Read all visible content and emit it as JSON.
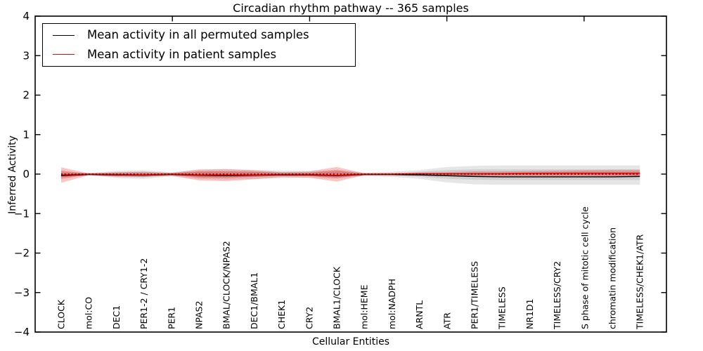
{
  "title": "Circadian rhythm pathway -- 365 samples",
  "legend": {
    "items": [
      {
        "label": "Mean activity in all permuted samples",
        "color": "#000000"
      },
      {
        "label": "Mean activity in patient samples",
        "color": "#ff0000"
      }
    ],
    "position": "upper left"
  },
  "axes": {
    "spine_color": "#000000",
    "background": "#ffffff"
  },
  "chart_data": {
    "type": "line",
    "title": "Circadian rhythm pathway -- 365 samples",
    "xlabel": "Cellular Entities",
    "ylabel": "Inferred Activity",
    "ylim": [
      -4,
      4
    ],
    "grid": false,
    "legend_position": "upper left",
    "yticks": [
      4,
      3,
      2,
      1,
      0,
      -1,
      -2,
      -3,
      -4
    ],
    "yticklabels": [
      "4",
      "3",
      "2",
      "1",
      "0",
      "−1",
      "−2",
      "−3",
      "−4"
    ],
    "xticks_top": [
      5,
      10,
      15,
      20
    ],
    "categories": [
      "CLOCK",
      "mol:CO",
      "DEC1",
      "PER1-2 / CRY1-2",
      "PER1",
      "NPAS2",
      "BMAL/CLOCK/NPAS2",
      "DEC1/BMAL1",
      "CHEK1",
      "CRY2",
      "BMAL1/CLOCK",
      "mol:HEME",
      "mol:NADPH",
      "ARNTL",
      "ATR",
      "PER1/TIMELESS",
      "TIMELESS",
      "NR1D1",
      "TIMELESS/CRY2",
      "S phase of mitotic cell cycle",
      "chromatin modification",
      "TIMELESS/CHEK1/ATR"
    ],
    "series": [
      {
        "name": "Mean activity in all permuted samples",
        "color": "#000000",
        "style": "solid",
        "width": 1.4,
        "values": [
          -0.04,
          -0.01,
          -0.02,
          -0.03,
          -0.01,
          -0.03,
          -0.04,
          -0.03,
          -0.02,
          -0.02,
          -0.04,
          -0.01,
          -0.01,
          -0.02,
          -0.04,
          -0.06,
          -0.07,
          -0.07,
          -0.07,
          -0.07,
          -0.07,
          -0.06
        ]
      },
      {
        "name": "Mean activity in patient samples",
        "color": "#ff0000",
        "style": "solid",
        "width": 1.5,
        "values": [
          -0.02,
          0.0,
          -0.01,
          -0.02,
          0.0,
          -0.02,
          -0.02,
          -0.02,
          -0.01,
          -0.01,
          -0.03,
          0.0,
          0.0,
          0.01,
          0.01,
          0.01,
          0.01,
          0.02,
          0.02,
          0.02,
          0.02,
          0.02
        ]
      },
      {
        "name": "zero-reference",
        "color": "#000000",
        "style": "dotted",
        "width": 1.2,
        "values": [
          0,
          0,
          0,
          0,
          0,
          0,
          0,
          0,
          0,
          0,
          0,
          0,
          0,
          0,
          0,
          0,
          0,
          0,
          0,
          0,
          0,
          0
        ]
      }
    ],
    "bands": [
      {
        "name": "permuted-range-outer",
        "color": "rgba(130,130,130,0.20)",
        "upper": [
          0.06,
          0.03,
          0.08,
          0.1,
          0.05,
          0.1,
          0.12,
          0.1,
          0.09,
          0.08,
          0.1,
          0.04,
          0.06,
          0.1,
          0.18,
          0.21,
          0.22,
          0.22,
          0.22,
          0.22,
          0.22,
          0.22
        ],
        "lower": [
          -0.08,
          -0.03,
          -0.1,
          -0.12,
          -0.06,
          -0.12,
          -0.14,
          -0.12,
          -0.1,
          -0.09,
          -0.12,
          -0.05,
          -0.07,
          -0.12,
          -0.21,
          -0.26,
          -0.27,
          -0.27,
          -0.27,
          -0.27,
          -0.27,
          -0.27
        ]
      },
      {
        "name": "permuted-range-inner",
        "color": "rgba(130,130,130,0.22)",
        "upper": [
          0.03,
          0.02,
          0.04,
          0.06,
          0.03,
          0.06,
          0.07,
          0.06,
          0.05,
          0.04,
          0.06,
          0.02,
          0.03,
          0.06,
          0.1,
          0.12,
          0.12,
          0.12,
          0.12,
          0.12,
          0.12,
          0.12
        ],
        "lower": [
          -0.04,
          -0.02,
          -0.06,
          -0.07,
          -0.03,
          -0.07,
          -0.08,
          -0.07,
          -0.06,
          -0.05,
          -0.07,
          -0.03,
          -0.04,
          -0.07,
          -0.12,
          -0.14,
          -0.15,
          -0.15,
          -0.15,
          -0.15,
          -0.15,
          -0.15
        ]
      },
      {
        "name": "patient-range-outer",
        "color": "rgba(235,45,45,0.28)",
        "upper": [
          0.17,
          0.02,
          0.05,
          0.06,
          0.03,
          0.12,
          0.13,
          0.1,
          0.05,
          0.07,
          0.18,
          0.02,
          0.02,
          0.04,
          0.05,
          0.07,
          0.07,
          0.08,
          0.09,
          0.1,
          0.11,
          0.11
        ],
        "lower": [
          -0.22,
          -0.03,
          -0.07,
          -0.08,
          -0.04,
          -0.16,
          -0.18,
          -0.13,
          -0.08,
          -0.09,
          -0.19,
          -0.03,
          -0.03,
          -0.04,
          -0.05,
          -0.06,
          -0.06,
          -0.06,
          -0.06,
          -0.06,
          -0.07,
          -0.07
        ]
      },
      {
        "name": "patient-range-inner",
        "color": "rgba(235,45,45,0.34)",
        "upper": [
          0.09,
          0.01,
          0.03,
          0.03,
          0.02,
          0.07,
          0.07,
          0.06,
          0.03,
          0.04,
          0.1,
          0.01,
          0.01,
          0.02,
          0.03,
          0.04,
          0.04,
          0.04,
          0.05,
          0.06,
          0.06,
          0.06
        ],
        "lower": [
          -0.12,
          -0.02,
          -0.04,
          -0.04,
          -0.02,
          -0.09,
          -0.1,
          -0.07,
          -0.04,
          -0.05,
          -0.1,
          -0.02,
          -0.02,
          -0.02,
          -0.03,
          -0.03,
          -0.03,
          -0.03,
          -0.03,
          -0.03,
          -0.04,
          -0.04
        ]
      }
    ]
  }
}
